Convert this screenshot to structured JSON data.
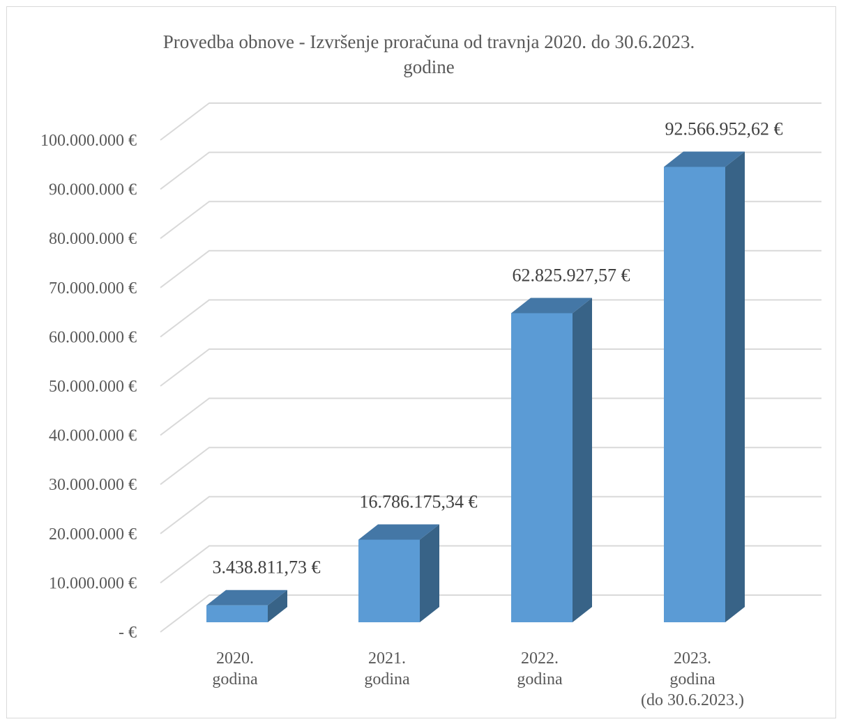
{
  "chart_data": {
    "type": "bar",
    "title_lines": [
      "Provedba obnove - Izvršenje proračuna od travnja 2020. do 30.6.2023.",
      "godine"
    ],
    "categories": [
      [
        "2020.",
        "godina"
      ],
      [
        "2021.",
        "godina"
      ],
      [
        "2022.",
        "godina"
      ],
      [
        "2023.",
        "godina",
        "(do 30.6.2023.)"
      ]
    ],
    "values": [
      3438811.73,
      16786175.34,
      62825927.57,
      92566952.62
    ],
    "data_labels": [
      "3.438.811,73 €",
      "16.786.175,34 €",
      "62.825.927,57 €",
      "92.566.952,62 €"
    ],
    "y_ticks": [
      0,
      10000000,
      20000000,
      30000000,
      40000000,
      50000000,
      60000000,
      70000000,
      80000000,
      90000000,
      100000000
    ],
    "y_tick_labels": [
      "- €",
      "10.000.000 €",
      "20.000.000 €",
      "30.000.000 €",
      "40.000.000 €",
      "50.000.000 €",
      "60.000.000 €",
      "70.000.000 €",
      "80.000.000 €",
      "90.000.000 €",
      "100.000.000 €"
    ],
    "ylim": [
      0,
      100000000
    ],
    "grid": true,
    "three_d": true,
    "legend": "none",
    "colors": {
      "bar_front": "#5b9bd5",
      "bar_top": "#4477a6",
      "bar_side": "#386387",
      "grid": "#d9d9d9"
    }
  }
}
